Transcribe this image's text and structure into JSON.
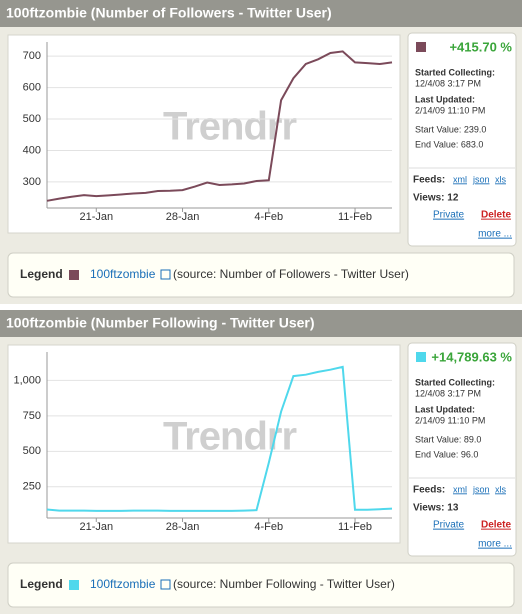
{
  "chart_data": [
    {
      "type": "line",
      "title": "100ftzombie (Number of Followers - Twitter User)",
      "x": [
        17,
        18,
        19,
        20,
        21,
        22,
        23,
        24,
        25,
        26,
        27,
        28,
        29,
        30,
        31,
        32,
        33,
        34,
        35,
        36,
        37,
        38,
        39,
        40,
        41,
        42,
        43,
        44,
        45
      ],
      "series": [
        {
          "name": "100ftzombie",
          "color": "#7b4a5a",
          "values": [
            240,
            247,
            253,
            258,
            255,
            257,
            260,
            263,
            265,
            271,
            272,
            274,
            285,
            298,
            290,
            292,
            295,
            303,
            305,
            560,
            630,
            675,
            690,
            710,
            715,
            680,
            678,
            675,
            680
          ]
        }
      ],
      "xlim": [
        17,
        45
      ],
      "xticks": [
        {
          "value": 21,
          "label": "21-Jan"
        },
        {
          "value": 28,
          "label": "28-Jan"
        },
        {
          "value": 35,
          "label": "4-Feb"
        },
        {
          "value": 42,
          "label": "11-Feb"
        }
      ],
      "ylim": [
        217,
        745
      ],
      "yticks": [
        300,
        400,
        500,
        600,
        700
      ],
      "grid": true
    },
    {
      "type": "line",
      "title": "100ftzombie (Number Following - Twitter User)",
      "x": [
        17,
        18,
        19,
        20,
        21,
        22,
        23,
        24,
        25,
        26,
        27,
        28,
        29,
        30,
        31,
        32,
        33,
        34,
        35,
        36,
        37,
        38,
        39,
        40,
        41,
        42,
        43,
        44,
        45
      ],
      "series": [
        {
          "name": "100ftzombie",
          "color": "#4fd8ec",
          "values": [
            90,
            82,
            82,
            82,
            80,
            80,
            80,
            82,
            82,
            82,
            80,
            80,
            80,
            80,
            80,
            80,
            82,
            85,
            420,
            780,
            1030,
            1040,
            1060,
            1075,
            1095,
            88,
            88,
            92,
            96
          ]
        }
      ],
      "xlim": [
        17,
        45
      ],
      "xticks": [
        {
          "value": 21,
          "label": "21-Jan"
        },
        {
          "value": 28,
          "label": "28-Jan"
        },
        {
          "value": 35,
          "label": "4-Feb"
        },
        {
          "value": 42,
          "label": "11-Feb"
        }
      ],
      "ylim": [
        30,
        1200
      ],
      "yticks": [
        250,
        500,
        750,
        {
          "value": 1000,
          "label": "1,000"
        }
      ],
      "grid": true
    }
  ],
  "panels": [
    {
      "change": "+415.70 %",
      "started_label": "Started Collecting:",
      "started": "12/4/08 3:17 PM",
      "updated_label": "Last Updated:",
      "updated": "2/14/09 11:10 PM",
      "start_value": "Start Value: 239.0",
      "end_value": "End Value: 683.0",
      "feeds": "Feeds:",
      "xml": "xml",
      "json": "json",
      "xls": "xls",
      "views": "Views: 12",
      "private": "Private",
      "delete": "Delete",
      "more": "more ...",
      "watermark": "Trendrr",
      "legend": "Legend",
      "source": "(source: Number of Followers - Twitter User)"
    },
    {
      "change": "+14,789.63 %",
      "started_label": "Started Collecting:",
      "started": "12/4/08 3:17 PM",
      "updated_label": "Last Updated:",
      "updated": "2/14/09 11:10 PM",
      "start_value": "Start Value: 89.0",
      "end_value": "End Value: 96.0",
      "feeds": "Feeds:",
      "xml": "xml",
      "json": "json",
      "xls": "xls",
      "views": "Views: 13",
      "private": "Private",
      "delete": "Delete",
      "more": "more ...",
      "watermark": "Trendrr",
      "legend": "Legend",
      "source": "(source: Number Following - Twitter User)"
    }
  ]
}
